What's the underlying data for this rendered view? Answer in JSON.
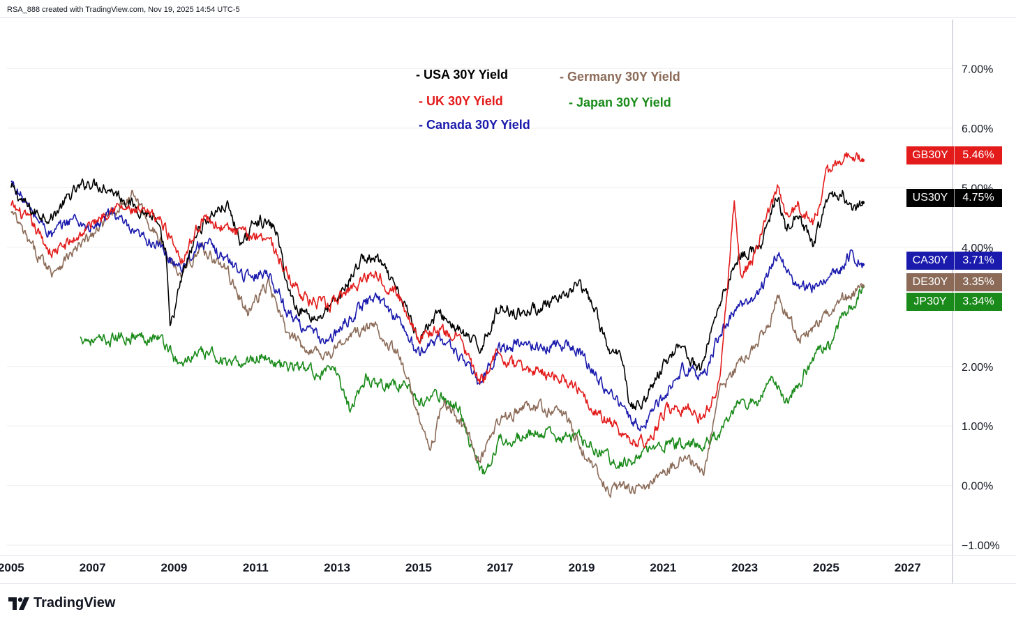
{
  "header": {
    "attribution": "RSA_888 created with TradingView.com, Nov 19, 2025 14:54 UTC-5"
  },
  "footer": {
    "brand": "TradingView"
  },
  "legend": {
    "usa": "- USA 30Y Yield",
    "uk": "- UK 30Y Yield",
    "canada": "- Canada 30Y Yield",
    "germany": "- Germany 30Y Yield",
    "japan": "- Japan 30Y Yield"
  },
  "badges": [
    {
      "ticker": "GB30Y",
      "value": "5.46%",
      "color": "#e31b1b"
    },
    {
      "ticker": "US30Y",
      "value": "4.75%",
      "color": "#000000"
    },
    {
      "ticker": "CA30Y",
      "value": "3.71%",
      "color": "#1a1aad"
    },
    {
      "ticker": "DE30Y",
      "value": "3.35%",
      "color": "#8b6b58"
    },
    {
      "ticker": "JP30Y",
      "value": "3.34%",
      "color": "#1a8a1a"
    }
  ],
  "chart_data": {
    "type": "line",
    "title": "",
    "xlabel": "",
    "ylabel": "",
    "xlim": [
      2004.9,
      2028.1
    ],
    "ylim": [
      -1.15,
      7.8
    ],
    "y_ticks": [
      "7.00%",
      "6.00%",
      "5.00%",
      "4.00%",
      "2.00%",
      "1.00%",
      "0.00%",
      "−1.00%"
    ],
    "y_tick_values": [
      7,
      6,
      5,
      4,
      2,
      1,
      0,
      -1
    ],
    "x_ticks": [
      "2005",
      "2007",
      "2009",
      "2011",
      "2013",
      "2015",
      "2017",
      "2019",
      "2021",
      "2023",
      "2025",
      "2027"
    ],
    "x_tick_values": [
      2005,
      2007,
      2009,
      2011,
      2013,
      2015,
      2017,
      2019,
      2021,
      2023,
      2025,
      2027
    ],
    "series": [
      {
        "name": "USA 30Y Yield",
        "ticker": "US30Y",
        "color": "#000000",
        "x": [
          2005,
          2005.5,
          2006,
          2006.5,
          2006.9,
          2007.4,
          2008,
          2008.5,
          2008.8,
          2008.9,
          2009.2,
          2009.6,
          2010,
          2010.3,
          2010.7,
          2011,
          2011.5,
          2011.8,
          2012,
          2012.5,
          2013,
          2013.6,
          2014,
          2014.6,
          2015,
          2015.5,
          2016,
          2016.5,
          2017,
          2017.5,
          2018,
          2018.5,
          2018.9,
          2019.3,
          2019.7,
          2020,
          2020.2,
          2020.5,
          2021,
          2021.4,
          2021.9,
          2022.3,
          2022.8,
          2023,
          2023.4,
          2023.8,
          2024,
          2024.3,
          2024.7,
          2025,
          2025.4,
          2025.7,
          2025.9
        ],
        "values": [
          5.0,
          4.6,
          4.5,
          4.9,
          5.1,
          5.0,
          4.7,
          4.5,
          3.9,
          2.6,
          3.5,
          4.3,
          4.6,
          4.7,
          4.0,
          4.5,
          4.3,
          3.3,
          3.0,
          2.8,
          3.1,
          3.8,
          3.8,
          3.1,
          2.5,
          2.9,
          2.6,
          2.3,
          3.0,
          2.9,
          3.0,
          3.1,
          3.4,
          3.0,
          2.2,
          2.2,
          1.3,
          1.4,
          2.0,
          2.4,
          1.9,
          2.9,
          3.8,
          3.9,
          4.0,
          4.9,
          4.3,
          4.5,
          4.0,
          4.8,
          4.9,
          4.6,
          4.75
        ]
      },
      {
        "name": "UK 30Y Yield",
        "ticker": "GB30Y",
        "color": "#e31b1b",
        "x": [
          2005,
          2005.5,
          2006,
          2006.5,
          2007,
          2007.5,
          2008,
          2008.6,
          2008.9,
          2009.2,
          2009.7,
          2010.3,
          2010.8,
          2011.3,
          2011.8,
          2012.3,
          2012.8,
          2013.3,
          2013.9,
          2014.5,
          2015,
          2015.4,
          2016,
          2016.5,
          2016.9,
          2017.4,
          2018,
          2018.6,
          2019,
          2019.4,
          2019.8,
          2020.2,
          2020.7,
          2021.1,
          2021.6,
          2022,
          2022.4,
          2022.75,
          2022.9,
          2023.2,
          2023.6,
          2023.8,
          2024,
          2024.3,
          2024.7,
          2025,
          2025.4,
          2025.6,
          2025.9
        ],
        "values": [
          4.7,
          4.4,
          3.9,
          4.1,
          4.4,
          4.7,
          4.6,
          4.5,
          4.2,
          3.8,
          4.5,
          4.3,
          4.2,
          4.2,
          3.5,
          3.1,
          3.0,
          3.3,
          3.6,
          3.2,
          2.5,
          2.6,
          2.5,
          1.7,
          2.2,
          2.0,
          1.9,
          1.8,
          1.6,
          1.2,
          1.0,
          0.7,
          0.8,
          1.3,
          1.3,
          1.1,
          1.8,
          4.8,
          3.5,
          3.8,
          4.6,
          5.0,
          4.5,
          4.7,
          4.4,
          5.2,
          5.5,
          5.6,
          5.46
        ]
      },
      {
        "name": "Canada 30Y Yield",
        "ticker": "CA30Y",
        "color": "#1a1aad",
        "x": [
          2005,
          2005.5,
          2006,
          2006.5,
          2007,
          2007.5,
          2008,
          2008.5,
          2008.9,
          2009.2,
          2009.7,
          2010.3,
          2010.8,
          2011.3,
          2011.8,
          2012.3,
          2012.8,
          2013.3,
          2013.9,
          2014.5,
          2015,
          2015.5,
          2016,
          2016.5,
          2017,
          2017.5,
          2018,
          2018.6,
          2019,
          2019.4,
          2019.8,
          2020.2,
          2020.5,
          2021,
          2021.5,
          2022,
          2022.3,
          2022.8,
          2023,
          2023.4,
          2023.8,
          2024.2,
          2024.6,
          2025,
          2025.3,
          2025.6,
          2025.9
        ],
        "values": [
          5.1,
          4.6,
          4.2,
          4.5,
          4.3,
          4.6,
          4.2,
          4.1,
          3.8,
          3.7,
          4.1,
          3.8,
          3.5,
          3.6,
          2.9,
          2.6,
          2.4,
          2.8,
          3.2,
          2.8,
          2.2,
          2.5,
          2.2,
          1.7,
          2.3,
          2.4,
          2.3,
          2.4,
          2.2,
          1.8,
          1.5,
          1.1,
          1.0,
          1.5,
          2.0,
          1.8,
          2.4,
          3.0,
          3.0,
          3.3,
          3.9,
          3.4,
          3.3,
          3.5,
          3.6,
          3.9,
          3.71
        ]
      },
      {
        "name": "Germany 30Y Yield",
        "ticker": "DE30Y",
        "color": "#8b6b58",
        "x": [
          2005,
          2005.5,
          2006,
          2006.5,
          2007,
          2007.5,
          2008,
          2008.4,
          2008.9,
          2009.2,
          2009.7,
          2010.3,
          2010.8,
          2011.3,
          2011.8,
          2012.3,
          2012.8,
          2013.3,
          2013.9,
          2014.5,
          2015,
          2015.3,
          2015.6,
          2016,
          2016.5,
          2017,
          2017.5,
          2018,
          2018.6,
          2019,
          2019.4,
          2019.7,
          2020,
          2020.5,
          2021,
          2021.5,
          2022,
          2022.4,
          2022.8,
          2023.2,
          2023.6,
          2023.8,
          2024.3,
          2024.7,
          2025,
          2025.4,
          2025.7,
          2025.9
        ],
        "values": [
          4.6,
          4.0,
          3.6,
          3.9,
          4.2,
          4.6,
          4.9,
          4.4,
          3.8,
          3.6,
          4.0,
          3.6,
          2.9,
          3.4,
          2.5,
          2.3,
          2.2,
          2.5,
          2.7,
          2.2,
          1.2,
          0.6,
          1.4,
          1.1,
          0.4,
          1.1,
          1.3,
          1.3,
          1.2,
          0.6,
          0.2,
          -0.1,
          0.0,
          -0.1,
          0.2,
          0.5,
          0.2,
          1.6,
          2.0,
          2.3,
          2.7,
          3.2,
          2.5,
          2.6,
          2.9,
          3.1,
          3.2,
          3.35
        ]
      },
      {
        "name": "Japan 30Y Yield",
        "ticker": "JP30Y",
        "color": "#1a8a1a",
        "x": [
          2006.7,
          2007.2,
          2007.7,
          2008.2,
          2008.6,
          2008.9,
          2009.1,
          2009.5,
          2010,
          2010.4,
          2010.8,
          2011.2,
          2011.6,
          2012,
          2012.5,
          2013,
          2013.3,
          2013.7,
          2014.2,
          2014.7,
          2015,
          2015.5,
          2016,
          2016.3,
          2016.6,
          2017,
          2017.5,
          2018,
          2018.5,
          2019,
          2019.4,
          2019.8,
          2020.2,
          2020.7,
          2021.2,
          2021.7,
          2022,
          2022.4,
          2022.9,
          2023.3,
          2023.7,
          2024,
          2024.4,
          2024.8,
          2025.1,
          2025.4,
          2025.7,
          2025.9
        ],
        "values": [
          2.5,
          2.4,
          2.5,
          2.5,
          2.5,
          2.3,
          2.0,
          2.2,
          2.2,
          2.0,
          2.1,
          2.2,
          2.0,
          2.0,
          1.9,
          1.9,
          1.3,
          1.8,
          1.7,
          1.7,
          1.4,
          1.5,
          1.3,
          0.6,
          0.2,
          0.8,
          0.8,
          0.9,
          0.8,
          0.8,
          0.6,
          0.4,
          0.4,
          0.6,
          0.7,
          0.7,
          0.7,
          0.9,
          1.4,
          1.4,
          1.8,
          1.4,
          1.8,
          2.3,
          2.3,
          2.9,
          3.1,
          3.34
        ]
      }
    ]
  }
}
